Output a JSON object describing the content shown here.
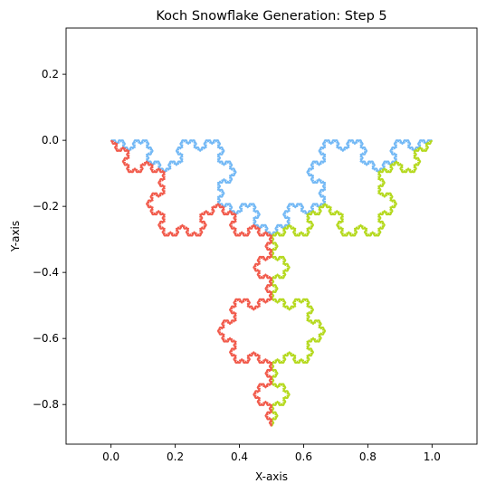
{
  "chart_data": {
    "type": "line",
    "title": "Koch Snowflake Generation: Step 5",
    "xlabel": "X-axis",
    "ylabel": "Y-axis",
    "xlim": [
      -0.14,
      1.14
    ],
    "ylim": [
      -0.92,
      0.34
    ],
    "aspect": "equal",
    "grid": false,
    "legend": "none",
    "iterations": 5,
    "x_ticks": [
      0.0,
      0.2,
      0.4,
      0.6,
      0.8,
      1.0
    ],
    "x_tick_labels": [
      "0.0",
      "0.2",
      "0.4",
      "0.6",
      "0.8",
      "1.0"
    ],
    "y_ticks": [
      0.2,
      0.0,
      -0.2,
      -0.4,
      -0.6,
      -0.8
    ],
    "y_tick_labels": [
      "0.2",
      "0.0",
      "−0.2",
      "−0.4",
      "−0.6",
      "−0.8"
    ],
    "series": [
      {
        "color": "#74b9f5",
        "start": [
          0.0,
          0.0
        ],
        "end": [
          1.0,
          0.0
        ]
      },
      {
        "color": "#b5d91f",
        "start": [
          1.0,
          0.0
        ],
        "end": [
          0.5,
          -0.866
        ]
      },
      {
        "color": "#f15b4c",
        "start": [
          0.5,
          -0.866
        ],
        "end": [
          0.0,
          0.0
        ]
      }
    ]
  }
}
